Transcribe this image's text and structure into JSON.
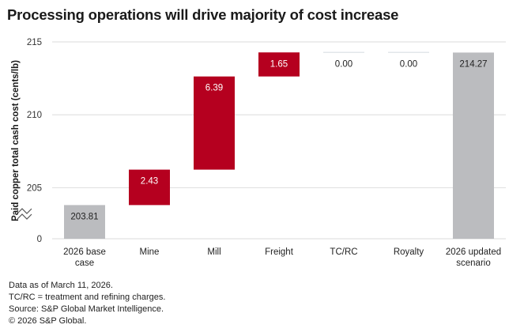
{
  "chart_data": {
    "type": "bar",
    "subtype": "waterfall",
    "title": "Processing operations will drive majority of cost increase",
    "xlabel": "",
    "ylabel": "Paid copper total cash cost (cents/lb)",
    "ylim": [
      201.5,
      215
    ],
    "axis_break": true,
    "yticks": [
      {
        "label": "0",
        "value": 201.5
      },
      {
        "label": "205",
        "value": 205
      },
      {
        "label": "210",
        "value": 210
      },
      {
        "label": "215",
        "value": 215
      }
    ],
    "grid": true,
    "categories": [
      "2026 base\ncase",
      "Mine",
      "Mill",
      "Freight",
      "TC/RC",
      "Royalty",
      "2026 updated\nscenario"
    ],
    "bars": [
      {
        "category": "2026 base case",
        "kind": "total",
        "value": 203.81,
        "label": "203.81"
      },
      {
        "category": "Mine",
        "kind": "delta",
        "value": 2.43,
        "label": "2.43"
      },
      {
        "category": "Mill",
        "kind": "delta",
        "value": 6.39,
        "label": "6.39"
      },
      {
        "category": "Freight",
        "kind": "delta",
        "value": 1.65,
        "label": "1.65"
      },
      {
        "category": "TC/RC",
        "kind": "delta",
        "value": 0.0,
        "label": "0.00"
      },
      {
        "category": "Royalty",
        "kind": "delta",
        "value": 0.0,
        "label": "0.00"
      },
      {
        "category": "2026 updated scenario",
        "kind": "total",
        "value": 214.27,
        "label": "214.27"
      }
    ],
    "colors": {
      "total": "#bbbcbf",
      "increase": "#b5001f",
      "grid": "#e2e2e2",
      "text": "#222222"
    }
  },
  "notes": [
    "Data as of March 11, 2026.",
    "TC/RC = treatment and refining charges.",
    "Source: S&P Global Market Intelligence.",
    "© 2026 S&P Global."
  ]
}
